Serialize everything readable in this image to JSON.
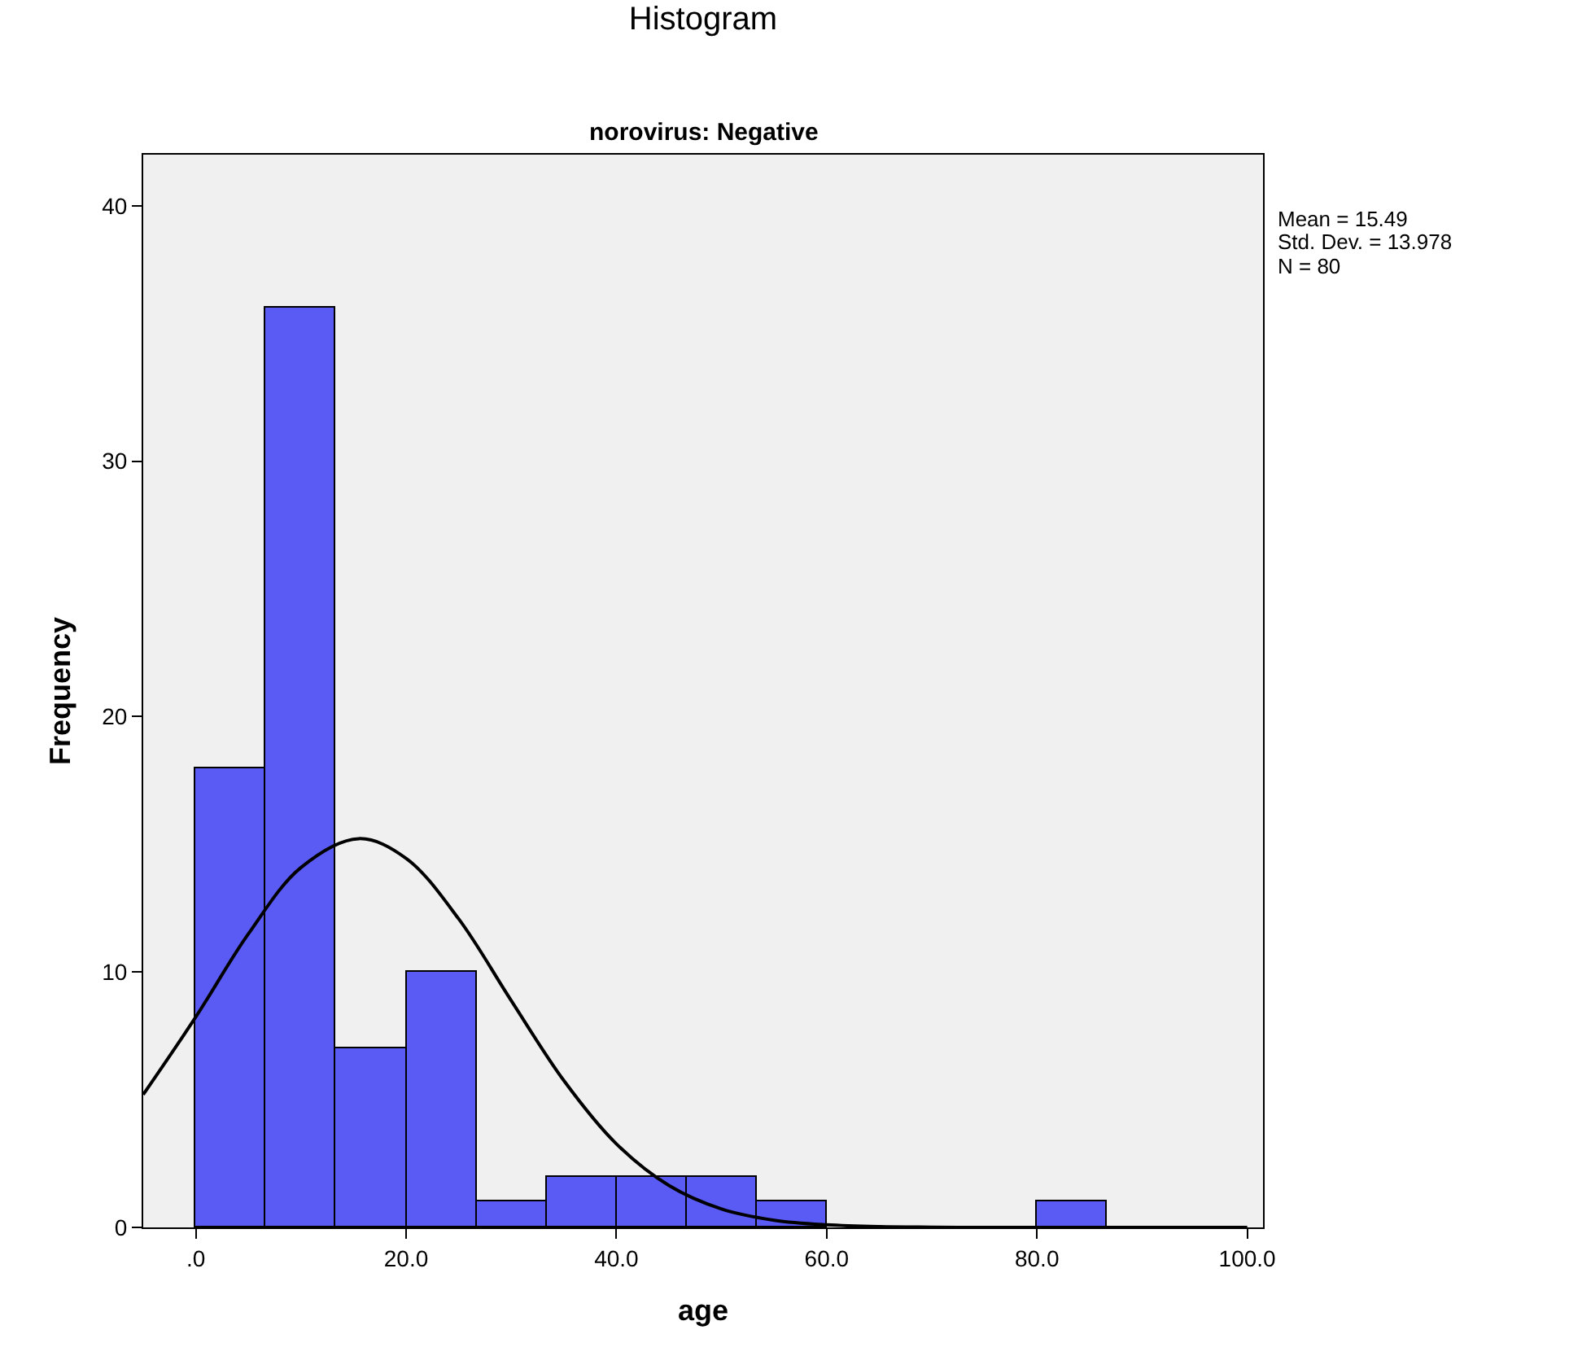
{
  "chart_data": {
    "type": "histogram",
    "title": "Histogram",
    "subtitle": "norovirus: Negative",
    "xlabel": "age",
    "ylabel": "Frequency",
    "bins": [
      0,
      6.667,
      13.333,
      20,
      26.667,
      33.333,
      40,
      46.667,
      53.333,
      60,
      66.667,
      73.333,
      80,
      86.667
    ],
    "values": [
      18,
      36,
      7,
      10,
      1,
      2,
      2,
      2,
      1,
      0,
      0,
      0,
      1
    ],
    "color": "#5a5af5",
    "series": [
      {
        "type": "line",
        "color": "#000000",
        "x": [
          -5,
          0,
          5,
          10,
          15.49,
          20,
          25,
          30,
          35,
          40,
          45,
          50,
          55,
          60,
          65,
          70,
          75,
          80,
          85,
          90,
          95,
          100
        ],
        "values": [
          5.2,
          8.24,
          11.49,
          14.09,
          15.22,
          14.45,
          12.08,
          8.88,
          5.75,
          3.27,
          1.64,
          0.72,
          0.28,
          0.1,
          0.03,
          0.01,
          0,
          0,
          0,
          0,
          0,
          0
        ]
      }
    ],
    "xlim": [
      -5,
      101.5
    ],
    "xticks": [
      {
        "value": 0,
        "label": ".0"
      },
      {
        "value": 20,
        "label": "20.0"
      },
      {
        "value": 40,
        "label": "40.0"
      },
      {
        "value": 60,
        "label": "60.0"
      },
      {
        "value": 80,
        "label": "80.0"
      },
      {
        "value": 100,
        "label": "100.0"
      }
    ],
    "ylim": [
      0,
      42
    ],
    "yticks": [
      0,
      10,
      20,
      30,
      40
    ],
    "annotations": [
      "Mean = 15.49",
      "Std. Dev. = 13.978",
      "N = 80"
    ],
    "grid": false
  }
}
